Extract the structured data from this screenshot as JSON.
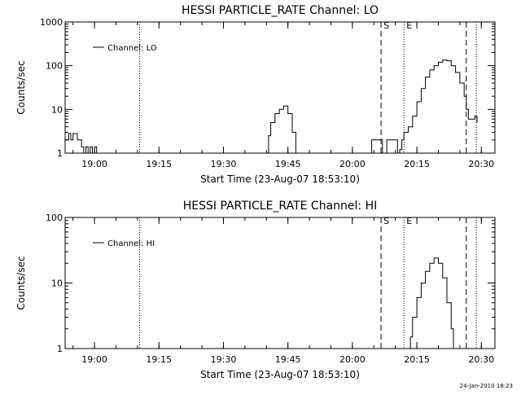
{
  "chart_data": [
    {
      "type": "line",
      "title": "HESSI PARTICLE_RATE Channel: LO",
      "xlabel": "Start Time (23-Aug-07 18:53:10)",
      "ylabel": "Counts/sec",
      "y_scale": "log",
      "ylim": [
        1,
        1000
      ],
      "xlim": [
        "18:53:10",
        "20:33:10"
      ],
      "x_ticks": [
        "19:00",
        "19:15",
        "19:30",
        "19:45",
        "20:00",
        "20:15",
        "20:30"
      ],
      "y_ticks": [
        "1",
        "10",
        "100",
        "1000"
      ],
      "legend": "top-left",
      "markers": [
        {
          "label": "",
          "time": "19:10:30",
          "style": "dotted"
        },
        {
          "label": "S",
          "time": "20:06:40",
          "style": "dashed"
        },
        {
          "label": "E",
          "time": "20:12:00",
          "style": "dotted"
        },
        {
          "label": "",
          "time": "20:26:30",
          "style": "dashed"
        },
        {
          "label": "",
          "time": "20:28:50",
          "style": "dotted"
        }
      ],
      "series": [
        {
          "name": "Channel: LO",
          "segments": [
            [
              [
                "18:53:10",
                2
              ],
              [
                "18:54:00",
                2.8
              ],
              [
                "18:54:30",
                2
              ],
              [
                "18:55:00",
                2.8
              ],
              [
                "18:55:30",
                2.8
              ],
              [
                "18:56:00",
                2
              ],
              [
                "18:56:30",
                2
              ],
              [
                "18:57:00",
                1.4
              ],
              [
                "18:57:30",
                1
              ],
              [
                "18:58:00",
                1.4
              ],
              [
                "18:58:30",
                1
              ],
              [
                "18:59:00",
                1.4
              ],
              [
                "18:59:30",
                1
              ],
              [
                "19:00:00",
                1.4
              ],
              [
                "19:00:30",
                1
              ]
            ],
            [
              [
                "19:40:00",
                1
              ],
              [
                "19:40:30",
                2.5
              ],
              [
                "19:41:00",
                5
              ],
              [
                "19:42:00",
                8
              ],
              [
                "19:43:00",
                10
              ],
              [
                "19:44:00",
                12
              ],
              [
                "19:45:00",
                8
              ],
              [
                "19:46:00",
                3
              ],
              [
                "19:46:50",
                1
              ]
            ],
            [
              [
                "20:04:00",
                1
              ],
              [
                "20:04:30",
                2
              ],
              [
                "20:05:00",
                2
              ],
              [
                "20:06:00",
                2
              ],
              [
                "20:06:40",
                2
              ],
              [
                "20:07:00",
                1
              ],
              [
                "20:08:00",
                2
              ],
              [
                "20:09:00",
                2
              ],
              [
                "20:10:00",
                2
              ],
              [
                "20:10:30",
                1
              ],
              [
                "20:11:00",
                1.2
              ],
              [
                "20:11:30",
                2
              ],
              [
                "20:12:00",
                3
              ],
              [
                "20:13:00",
                4
              ],
              [
                "20:14:00",
                7
              ],
              [
                "20:15:00",
                15
              ],
              [
                "20:16:00",
                30
              ],
              [
                "20:17:00",
                55
              ],
              [
                "20:18:00",
                80
              ],
              [
                "20:19:00",
                100
              ],
              [
                "20:20:00",
                120
              ],
              [
                "20:21:00",
                135
              ],
              [
                "20:22:00",
                130
              ],
              [
                "20:23:00",
                100
              ],
              [
                "20:24:00",
                70
              ],
              [
                "20:25:00",
                40
              ],
              [
                "20:26:00",
                20
              ],
              [
                "20:26:30",
                10
              ],
              [
                "20:27:00",
                6
              ],
              [
                "20:28:00",
                6
              ],
              [
                "20:28:30",
                7
              ],
              [
                "20:29:00",
                5
              ]
            ]
          ]
        }
      ]
    },
    {
      "type": "line",
      "title": "HESSI PARTICLE_RATE Channel: HI",
      "xlabel": "Start Time (23-Aug-07 18:53:10)",
      "ylabel": "Counts/sec",
      "y_scale": "log",
      "ylim": [
        1,
        100
      ],
      "xlim": [
        "18:53:10",
        "20:33:10"
      ],
      "x_ticks": [
        "19:00",
        "19:15",
        "19:30",
        "19:45",
        "20:00",
        "20:15",
        "20:30"
      ],
      "y_ticks": [
        "1",
        "10",
        "100"
      ],
      "legend": "top-left",
      "markers": [
        {
          "label": "",
          "time": "19:10:30",
          "style": "dotted"
        },
        {
          "label": "S",
          "time": "20:06:40",
          "style": "dashed"
        },
        {
          "label": "E",
          "time": "20:12:00",
          "style": "dotted"
        },
        {
          "label": "",
          "time": "20:26:30",
          "style": "dashed"
        },
        {
          "label": "",
          "time": "20:28:50",
          "style": "dotted"
        }
      ],
      "series": [
        {
          "name": "Channel: HI",
          "segments": [
            [
              [
                "20:13:00",
                1
              ],
              [
                "20:13:30",
                1.5
              ],
              [
                "20:14:00",
                3
              ],
              [
                "20:15:00",
                6
              ],
              [
                "20:16:00",
                10
              ],
              [
                "20:17:00",
                15
              ],
              [
                "20:18:00",
                20
              ],
              [
                "20:19:00",
                24
              ],
              [
                "20:20:00",
                20
              ],
              [
                "20:21:00",
                12
              ],
              [
                "20:22:00",
                5
              ],
              [
                "20:23:00",
                2
              ],
              [
                "20:23:30",
                1
              ]
            ]
          ]
        }
      ]
    }
  ],
  "footer": {
    "timestamp": "24-Jan-2010 18:23"
  }
}
